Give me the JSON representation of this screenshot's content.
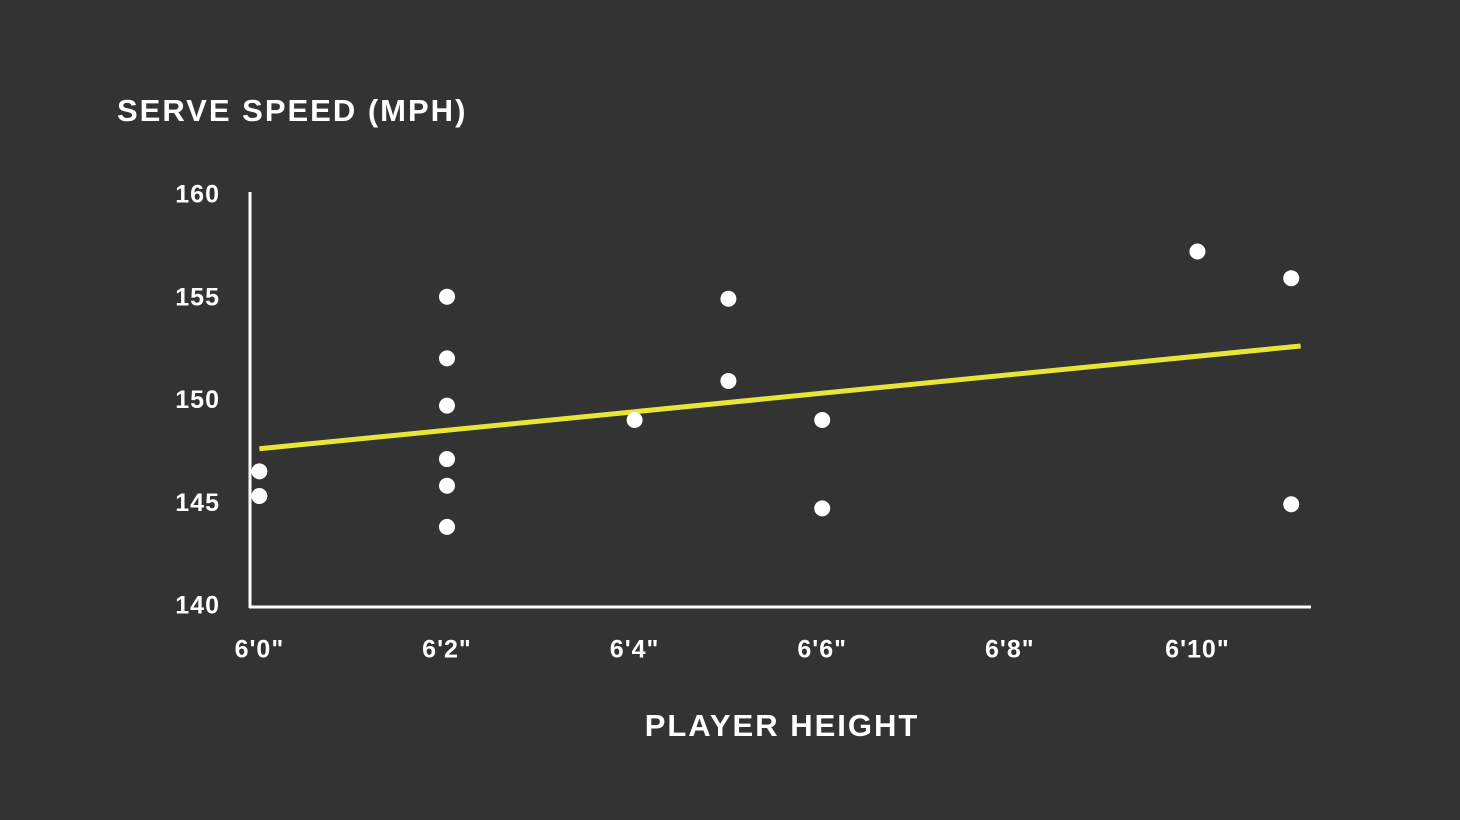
{
  "chart_data": {
    "type": "scatter",
    "ylabel": "SERVE SPEED (MPH)",
    "xlabel": "PLAYER HEIGHT",
    "xlim": [
      71.9,
      83.2
    ],
    "xticks": [
      {
        "value": 72,
        "label": "6'0\""
      },
      {
        "value": 74,
        "label": "6'2\""
      },
      {
        "value": 76,
        "label": "6'4\""
      },
      {
        "value": 78,
        "label": "6'6\""
      },
      {
        "value": 80,
        "label": "6'8\""
      },
      {
        "value": 82,
        "label": "6'10\""
      }
    ],
    "ylim": [
      140,
      160
    ],
    "yticks": [
      140,
      145,
      150,
      155,
      160
    ],
    "grid": false,
    "series": [
      {
        "color": "#ffffff",
        "x": [
          72,
          72,
          74,
          74,
          74,
          74,
          74,
          74,
          76,
          77,
          77,
          78,
          78,
          82,
          83,
          83
        ],
        "values": [
          146.6,
          145.4,
          155.1,
          152.1,
          149.8,
          147.2,
          145.9,
          143.9,
          149.1,
          155,
          151,
          149.1,
          144.8,
          157.3,
          156,
          145
        ]
      }
    ],
    "trendline": {
      "color": "#e8e43a",
      "x": [
        72,
        83.1
      ],
      "values": [
        147.7,
        152.7
      ]
    }
  }
}
